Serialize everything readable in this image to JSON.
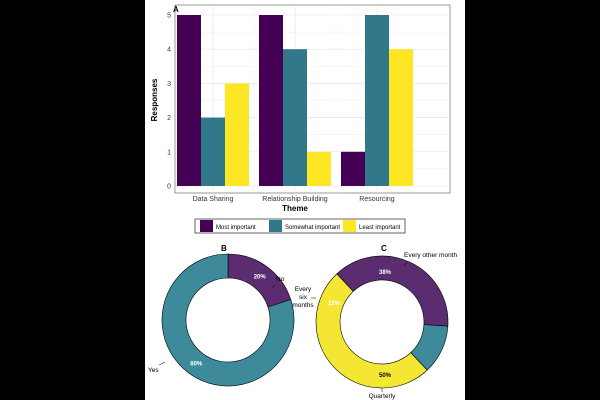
{
  "colors": {
    "most": "#440154",
    "somewhat": "#31788a",
    "least": "#fde725",
    "donut_purple": "#5b2c6f",
    "donut_teal": "#3d8a9a",
    "donut_yellow": "#f5e634"
  },
  "chart_data": [
    {
      "type": "bar",
      "panel": "A",
      "categories": [
        "Data Sharing",
        "Relationship Building",
        "Resourcing"
      ],
      "series": [
        {
          "name": "Most important",
          "values": [
            5,
            5,
            1
          ]
        },
        {
          "name": "Somewhat important",
          "values": [
            2,
            4,
            5
          ]
        },
        {
          "name": "Least important",
          "values": [
            3,
            1,
            4
          ]
        }
      ],
      "xlabel": "Theme",
      "ylabel": "Responses",
      "ylim": [
        0,
        5
      ],
      "yticks": [
        "0",
        "1",
        "2",
        "3",
        "4",
        "5"
      ],
      "grid": true,
      "legend_placement": "bottom"
    },
    {
      "type": "pie",
      "panel": "B",
      "slices": [
        {
          "label": "No",
          "value": 20,
          "pct_label": "20%"
        },
        {
          "label": "Yes",
          "value": 80,
          "pct_label": "80%"
        }
      ]
    },
    {
      "type": "pie",
      "panel": "C",
      "slices": [
        {
          "label": "Every other month",
          "value": 38,
          "pct_label": "38%"
        },
        {
          "label": "Every six months",
          "value": 12,
          "pct_label": "12%"
        },
        {
          "label": "Quarterly",
          "value": 50,
          "pct_label": "50%"
        }
      ],
      "label_lines": {
        "every_six_months": [
          "Every",
          "six",
          "months"
        ]
      }
    }
  ]
}
